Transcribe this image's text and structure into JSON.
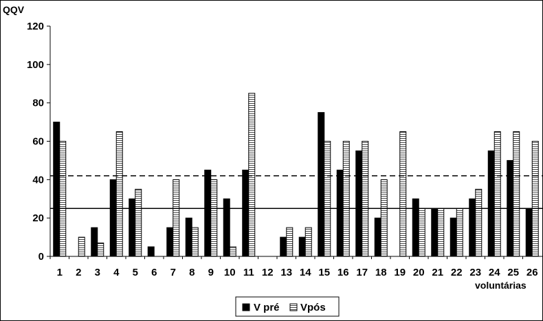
{
  "chart_data": {
    "type": "bar",
    "ylabel": "QQV",
    "xlabel": "voluntárias",
    "ylim": [
      0,
      120
    ],
    "yticks": [
      0,
      20,
      40,
      60,
      80,
      100,
      120
    ],
    "categories": [
      "1",
      "2",
      "3",
      "4",
      "5",
      "6",
      "7",
      "8",
      "9",
      "10",
      "11",
      "12",
      "13",
      "14",
      "15",
      "16",
      "17",
      "18",
      "19",
      "20",
      "21",
      "22",
      "23",
      "24",
      "25",
      "26"
    ],
    "series": [
      {
        "name": "V pré",
        "color": "#000000",
        "values": [
          70,
          0,
          15,
          40,
          30,
          5,
          15,
          20,
          45,
          30,
          45,
          0,
          10,
          10,
          75,
          45,
          55,
          20,
          0,
          30,
          25,
          20,
          30,
          55,
          50,
          25
        ]
      },
      {
        "name": "Vpós",
        "color": "#ffffff",
        "pattern": "horizontal-hatch",
        "values": [
          60,
          10,
          7,
          65,
          35,
          0,
          40,
          15,
          40,
          5,
          85,
          0,
          15,
          15,
          60,
          60,
          60,
          40,
          65,
          25,
          25,
          25,
          35,
          65,
          65,
          60
        ]
      }
    ],
    "reference_lines": [
      {
        "value": 42,
        "style": "dashed"
      },
      {
        "value": 25,
        "style": "solid"
      }
    ],
    "grid": false,
    "legend_position": "bottom-center"
  }
}
